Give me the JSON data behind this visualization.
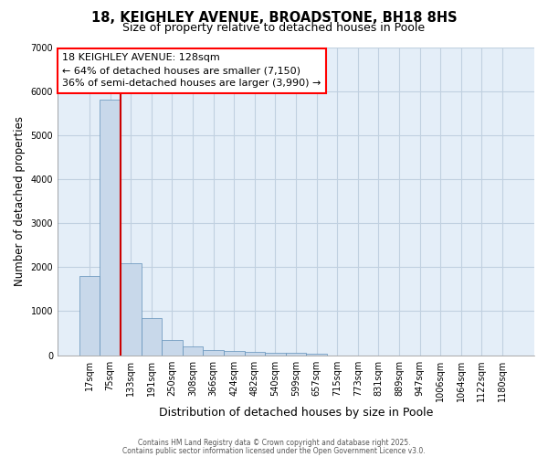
{
  "title1": "18, KEIGHLEY AVENUE, BROADSTONE, BH18 8HS",
  "title2": "Size of property relative to detached houses in Poole",
  "xlabel": "Distribution of detached houses by size in Poole",
  "ylabel": "Number of detached properties",
  "bar_labels": [
    "17sqm",
    "75sqm",
    "133sqm",
    "191sqm",
    "250sqm",
    "308sqm",
    "366sqm",
    "424sqm",
    "482sqm",
    "540sqm",
    "599sqm",
    "657sqm",
    "715sqm",
    "773sqm",
    "831sqm",
    "889sqm",
    "947sqm",
    "1006sqm",
    "1064sqm",
    "1122sqm",
    "1180sqm"
  ],
  "bar_values": [
    1800,
    5800,
    2080,
    840,
    350,
    200,
    120,
    100,
    75,
    60,
    45,
    30,
    0,
    0,
    0,
    0,
    0,
    0,
    0,
    0,
    0
  ],
  "bar_color": "#c8d8ea",
  "bar_edge_color": "#6090b8",
  "red_line_index": 2,
  "annotation_title": "18 KEIGHLEY AVENUE: 128sqm",
  "annotation_line1": "← 64% of detached houses are smaller (7,150)",
  "annotation_line2": "36% of semi-detached houses are larger (3,990) →",
  "annotation_box_color": "white",
  "annotation_box_edge": "red",
  "red_line_color": "#cc0000",
  "grid_color": "#c0d0e0",
  "background_color": "#e4eef8",
  "ylim": [
    0,
    7000
  ],
  "yticks": [
    0,
    1000,
    2000,
    3000,
    4000,
    5000,
    6000,
    7000
  ],
  "footer1": "Contains HM Land Registry data © Crown copyright and database right 2025.",
  "footer2": "Contains public sector information licensed under the Open Government Licence v3.0.",
  "title_fontsize": 10.5,
  "subtitle_fontsize": 9,
  "tick_fontsize": 7,
  "ylabel_fontsize": 8.5,
  "xlabel_fontsize": 9,
  "footer_fontsize": 5.5
}
